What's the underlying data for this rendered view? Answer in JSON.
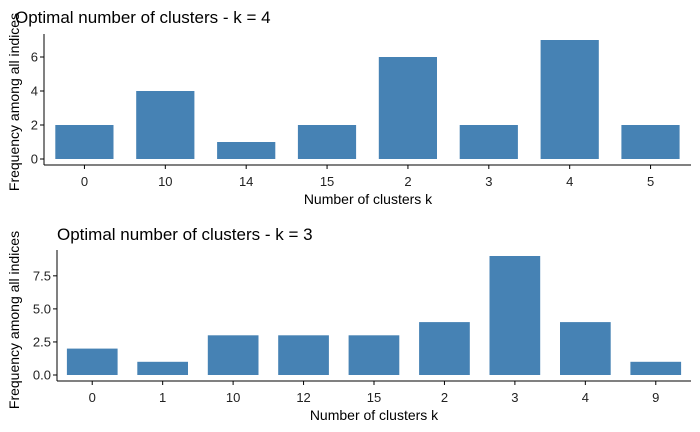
{
  "chart_data": [
    {
      "type": "bar",
      "title": "Optimal number of clusters - k = 4",
      "xlabel": "Number of clusters k",
      "ylabel": "Frequency among all indices",
      "categories": [
        "0",
        "10",
        "14",
        "15",
        "2",
        "3",
        "4",
        "5"
      ],
      "values": [
        2,
        4,
        1,
        2,
        6,
        2,
        7,
        2
      ],
      "ylim": [
        0,
        7
      ],
      "yticks": [
        "0",
        "2",
        "4",
        "6"
      ],
      "bar_color": "#4682b4",
      "grid": false
    },
    {
      "type": "bar",
      "title": "Optimal number of clusters - k = 3",
      "xlabel": "Number of clusters k",
      "ylabel": "Frequency among all indices",
      "categories": [
        "0",
        "1",
        "10",
        "12",
        "15",
        "2",
        "3",
        "4",
        "9"
      ],
      "values": [
        2,
        1,
        3,
        3,
        3,
        4,
        9,
        4,
        1
      ],
      "ylim": [
        0,
        9
      ],
      "yticks": [
        "0.0",
        "2.5",
        "5.0",
        "7.5"
      ],
      "bar_color": "#4682b4",
      "grid": false
    }
  ]
}
